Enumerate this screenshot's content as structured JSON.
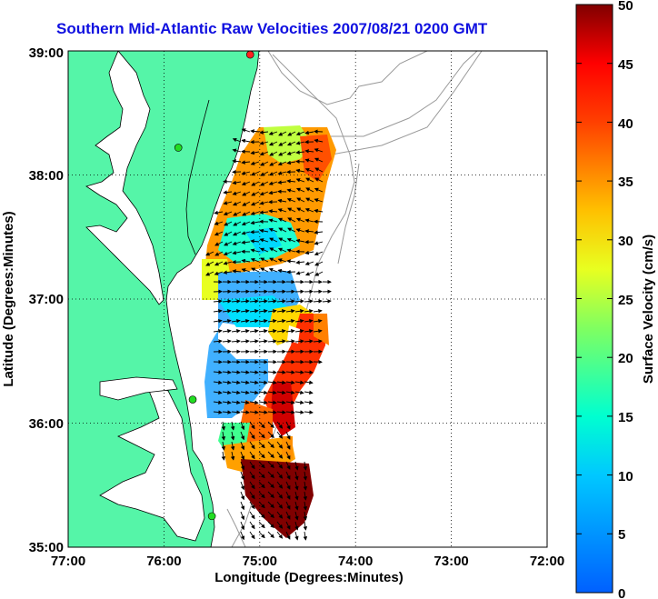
{
  "title": "Southern Mid-Atlantic Raw Velocities 2007/08/21 0200 GMT",
  "x_axis": {
    "label": "Longitude (Degrees:Minutes)",
    "ticks": [
      "77:00",
      "76:00",
      "75:00",
      "74:00",
      "73:00",
      "72:00"
    ]
  },
  "y_axis": {
    "label": "Latitude (Degrees:Minutes)",
    "ticks": [
      "39:00",
      "38:00",
      "37:00",
      "36:00",
      "35:00"
    ]
  },
  "colorbar": {
    "label": "Surface Velocity (cm/s)",
    "ticks": [
      "50",
      "45",
      "40",
      "35",
      "30",
      "25",
      "20",
      "15",
      "10",
      "5",
      "0"
    ],
    "min": 0,
    "max": 50
  },
  "colors": {
    "land": "#55f5a8",
    "title": "#1010e0",
    "bathymetry": "#9a9a9a"
  },
  "stations": [
    {
      "lon": -75.1,
      "lat": 38.97,
      "color": "#ff2020"
    },
    {
      "lon": -75.85,
      "lat": 38.22,
      "color": "#22dd22"
    },
    {
      "lon": -75.7,
      "lat": 36.19,
      "color": "#22dd22"
    },
    {
      "lon": -75.5,
      "lat": 35.25,
      "color": "#22dd22"
    }
  ]
}
